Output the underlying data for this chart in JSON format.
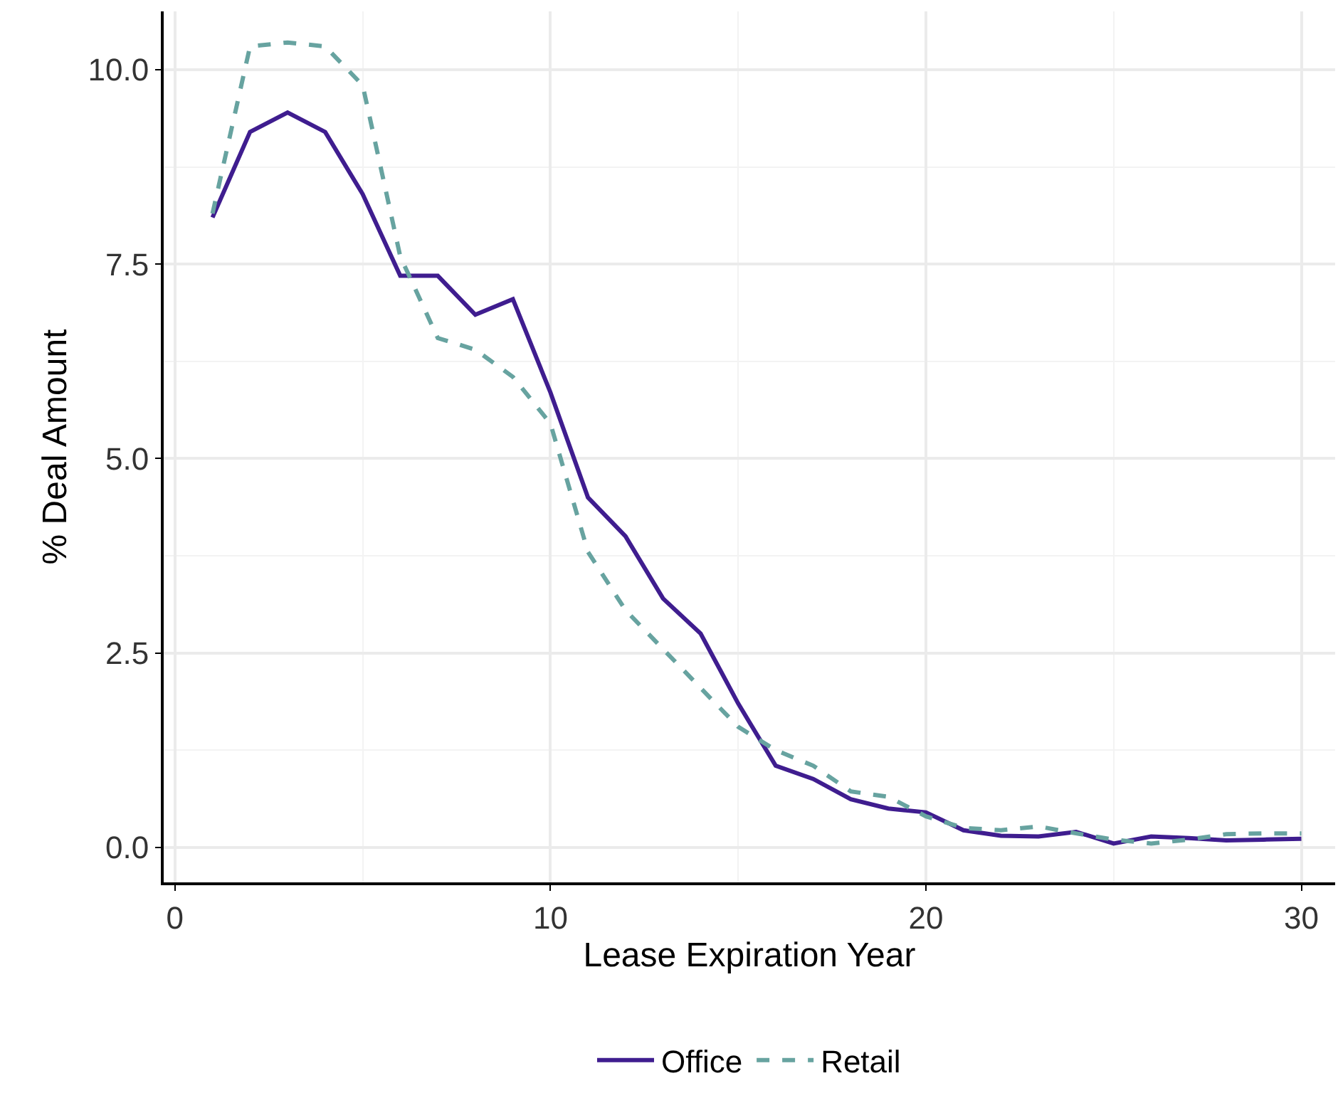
{
  "chart_data": {
    "type": "line",
    "xlabel": "Lease Expiration Year",
    "ylabel": "% Deal Amount",
    "x": [
      1,
      2,
      3,
      4,
      5,
      6,
      7,
      8,
      9,
      10,
      11,
      12,
      13,
      14,
      15,
      16,
      17,
      18,
      19,
      20,
      21,
      22,
      23,
      24,
      25,
      26,
      27,
      28,
      29,
      30
    ],
    "series": [
      {
        "name": "Office",
        "color": "#3f1d8f",
        "line_style": "solid",
        "values": [
          8.1,
          9.2,
          9.45,
          9.2,
          8.4,
          7.35,
          7.35,
          6.85,
          7.05,
          5.85,
          4.5,
          4.0,
          3.2,
          2.75,
          1.85,
          1.05,
          0.88,
          0.62,
          0.5,
          0.45,
          0.22,
          0.15,
          0.14,
          0.2,
          0.05,
          0.14,
          0.12,
          0.09,
          0.1,
          0.11
        ]
      },
      {
        "name": "Retail",
        "color": "#67a3a0",
        "line_style": "dashed",
        "values": [
          8.15,
          10.3,
          10.35,
          10.3,
          9.8,
          7.6,
          6.55,
          6.4,
          6.05,
          5.45,
          3.8,
          3.05,
          2.55,
          2.05,
          1.55,
          1.25,
          1.05,
          0.72,
          0.65,
          0.4,
          0.25,
          0.22,
          0.27,
          0.18,
          0.1,
          0.05,
          0.1,
          0.17,
          0.18,
          0.18
        ]
      }
    ],
    "xlim": [
      -0.3,
      30.9
    ],
    "ylim": [
      -0.45,
      10.75
    ],
    "xticks": [
      0,
      10,
      20,
      30
    ],
    "yticks": [
      {
        "value": 0,
        "label": "0.0"
      },
      {
        "value": 2.5,
        "label": "2.5"
      },
      {
        "value": 5,
        "label": "5.0"
      },
      {
        "value": 7.5,
        "label": "7.5"
      },
      {
        "value": 10,
        "label": "10.0"
      }
    ],
    "grid": true,
    "legend": "bottom",
    "marker": "none"
  }
}
